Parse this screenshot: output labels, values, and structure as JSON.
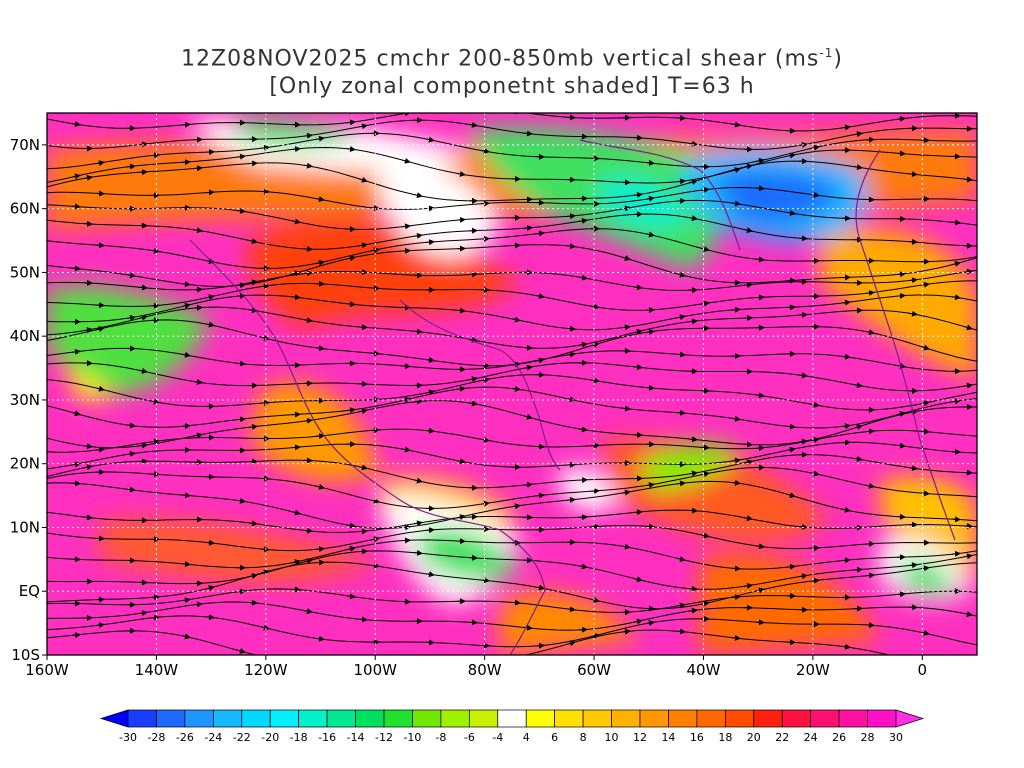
{
  "title": {
    "line1_prefix": "12Z08NOV2025 cmchr 200-850mb vertical shear (ms",
    "line1_sup": "-1",
    "line1_suffix": ")",
    "line2": "[Only zonal componetnt shaded] T=63 h"
  },
  "map": {
    "lon_range": [
      -160,
      10
    ],
    "lat_range": [
      -10,
      75
    ],
    "lat_ticks": [
      {
        "value": 70,
        "label": "70N"
      },
      {
        "value": 60,
        "label": "60N"
      },
      {
        "value": 50,
        "label": "50N"
      },
      {
        "value": 40,
        "label": "40N"
      },
      {
        "value": 30,
        "label": "30N"
      },
      {
        "value": 20,
        "label": "20N"
      },
      {
        "value": 10,
        "label": "10N"
      },
      {
        "value": 0,
        "label": "EQ"
      },
      {
        "value": -10,
        "label": "10S"
      }
    ],
    "lon_ticks": [
      {
        "value": -160,
        "label": "160W"
      },
      {
        "value": -140,
        "label": "140W"
      },
      {
        "value": -120,
        "label": "120W"
      },
      {
        "value": -100,
        "label": "100W"
      },
      {
        "value": -80,
        "label": "80W"
      },
      {
        "value": -60,
        "label": "60W"
      },
      {
        "value": -40,
        "label": "40W"
      },
      {
        "value": -20,
        "label": "20W"
      },
      {
        "value": 0,
        "label": "0"
      }
    ]
  },
  "colorbar": {
    "levels": [
      "-30",
      "-28",
      "-26",
      "-24",
      "-22",
      "-20",
      "-18",
      "-16",
      "-14",
      "-12",
      "-10",
      "-8",
      "-6",
      "-4",
      "4",
      "6",
      "8",
      "10",
      "12",
      "14",
      "16",
      "18",
      "20",
      "22",
      "24",
      "26",
      "28",
      "30"
    ],
    "colors": [
      "#0000ff",
      "#1a3dff",
      "#1f6bff",
      "#1f96ff",
      "#16b8ff",
      "#00d8ff",
      "#00f0ff",
      "#00f2c8",
      "#00e890",
      "#00e060",
      "#20e030",
      "#70e800",
      "#a0f000",
      "#c8f000",
      "#ffffff",
      "#ffff00",
      "#ffe000",
      "#ffc800",
      "#ffb000",
      "#ff9800",
      "#ff8000",
      "#ff6800",
      "#ff4c00",
      "#ff2010",
      "#ff1040",
      "#ff1070",
      "#ff10a0",
      "#ff10c8",
      "#ff30e0"
    ]
  }
}
